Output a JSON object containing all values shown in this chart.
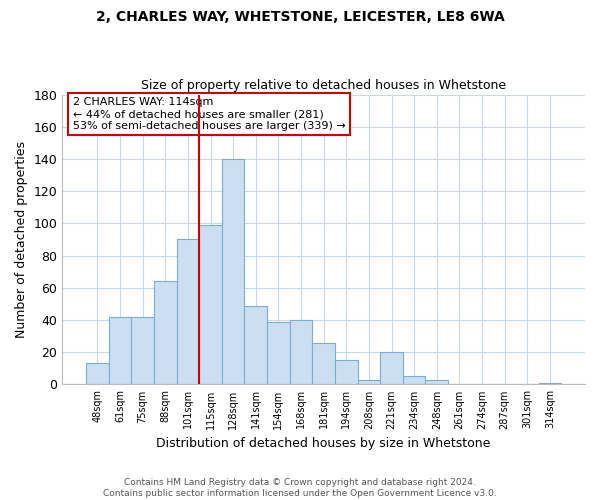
{
  "title": "2, CHARLES WAY, WHETSTONE, LEICESTER, LE8 6WA",
  "subtitle": "Size of property relative to detached houses in Whetstone",
  "xlabel": "Distribution of detached houses by size in Whetstone",
  "ylabel": "Number of detached properties",
  "bar_labels": [
    "48sqm",
    "61sqm",
    "75sqm",
    "88sqm",
    "101sqm",
    "115sqm",
    "128sqm",
    "141sqm",
    "154sqm",
    "168sqm",
    "181sqm",
    "194sqm",
    "208sqm",
    "221sqm",
    "234sqm",
    "248sqm",
    "261sqm",
    "274sqm",
    "287sqm",
    "301sqm",
    "314sqm"
  ],
  "bar_values": [
    13,
    42,
    42,
    64,
    90,
    99,
    140,
    49,
    39,
    40,
    26,
    15,
    3,
    20,
    5,
    3,
    0,
    0,
    0,
    0,
    1
  ],
  "bar_color": "#ccdff2",
  "bar_edge_color": "#7aadd4",
  "vline_color": "#cc0000",
  "ylim": [
    0,
    180
  ],
  "yticks": [
    0,
    20,
    40,
    60,
    80,
    100,
    120,
    140,
    160,
    180
  ],
  "annotation_title": "2 CHARLES WAY: 114sqm",
  "annotation_line1": "← 44% of detached houses are smaller (281)",
  "annotation_line2": "53% of semi-detached houses are larger (339) →",
  "annotation_box_color": "#ffffff",
  "annotation_box_edge": "#cc0000",
  "footer_line1": "Contains HM Land Registry data © Crown copyright and database right 2024.",
  "footer_line2": "Contains public sector information licensed under the Open Government Licence v3.0.",
  "background_color": "#ffffff",
  "grid_color": "#c8d8ea"
}
